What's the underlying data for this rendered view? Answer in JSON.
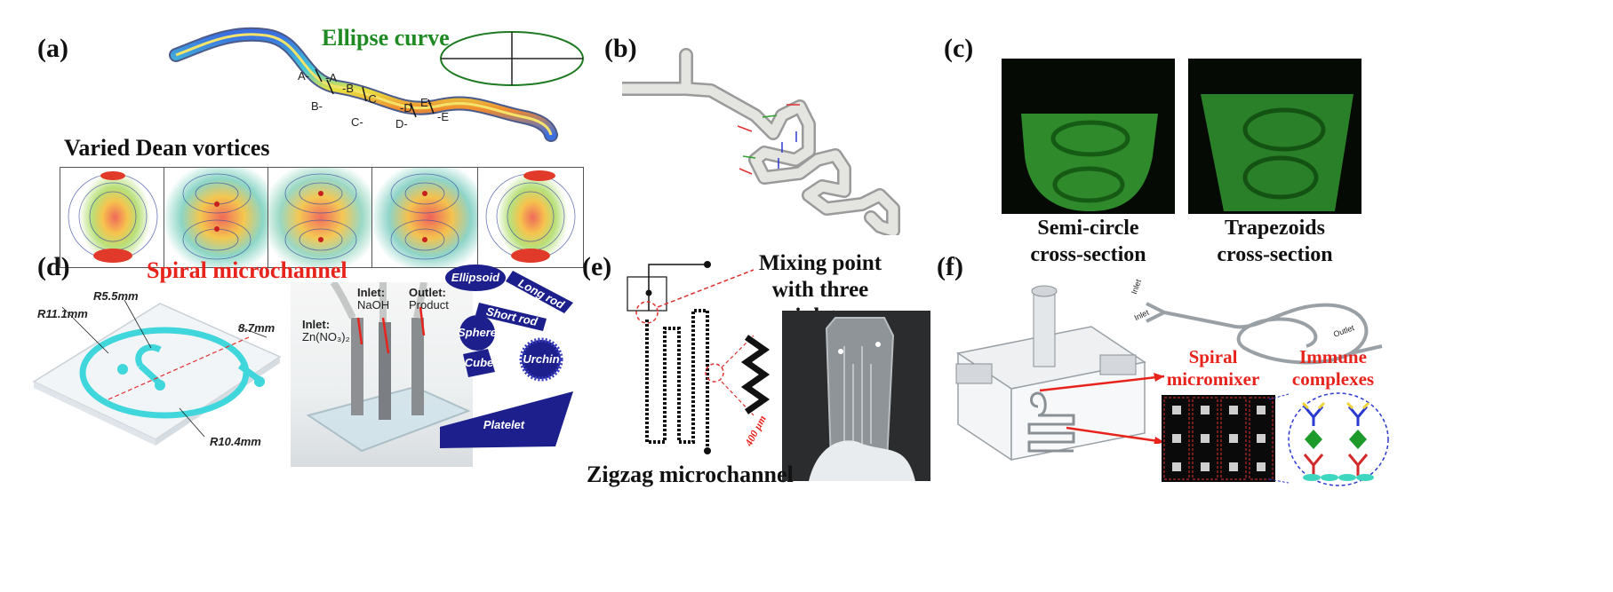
{
  "panels": {
    "a": {
      "label": "(a)",
      "title": "Ellipse curve",
      "subtitle": "Varied Dean vortices",
      "section_marks": [
        "A-",
        "-A",
        "B-",
        "-B",
        "C-",
        "-C",
        "D-",
        "-D",
        "E-",
        "-E"
      ]
    },
    "b": {
      "label": "(b)"
    },
    "c": {
      "label": "(c)",
      "captions": [
        "Semi-circle\ncross-section",
        "Trapezoids\ncross-section"
      ]
    },
    "d": {
      "label": "(d)",
      "title": "Spiral microchannel",
      "dims": [
        "R5.5mm",
        "R11.1mm",
        "8.7mm",
        "R10.4mm"
      ],
      "inlet1_label": "Inlet:",
      "inlet1_value": "Zn(NO₃)₂",
      "inlet2_label": "Inlet:",
      "inlet2_value": "NaOH",
      "outlet_label": "Outlet:",
      "outlet_value": "Product",
      "shapes": [
        "Ellipsoid",
        "Long rod",
        "Short rod",
        "Sphere",
        "Cube",
        "Urchin",
        "Platelet"
      ]
    },
    "e": {
      "label": "(e)",
      "title": "Mixing point\nwith three inlets",
      "dim": "400 μm",
      "caption": "Zigzag microchannel"
    },
    "f": {
      "label": "(f)",
      "inlet_labels": [
        "Inlet",
        "Inlet"
      ],
      "outlet_label": "Outlet",
      "label_spiral": "Spiral\nmicromixer",
      "label_immune": "Immune\ncomplexes"
    }
  },
  "colors": {
    "green_title": "#1f8a22",
    "red_title": "#e8231c",
    "channel_cyan": "#3fd6dc",
    "shape_blue": "#1c1f8c"
  }
}
